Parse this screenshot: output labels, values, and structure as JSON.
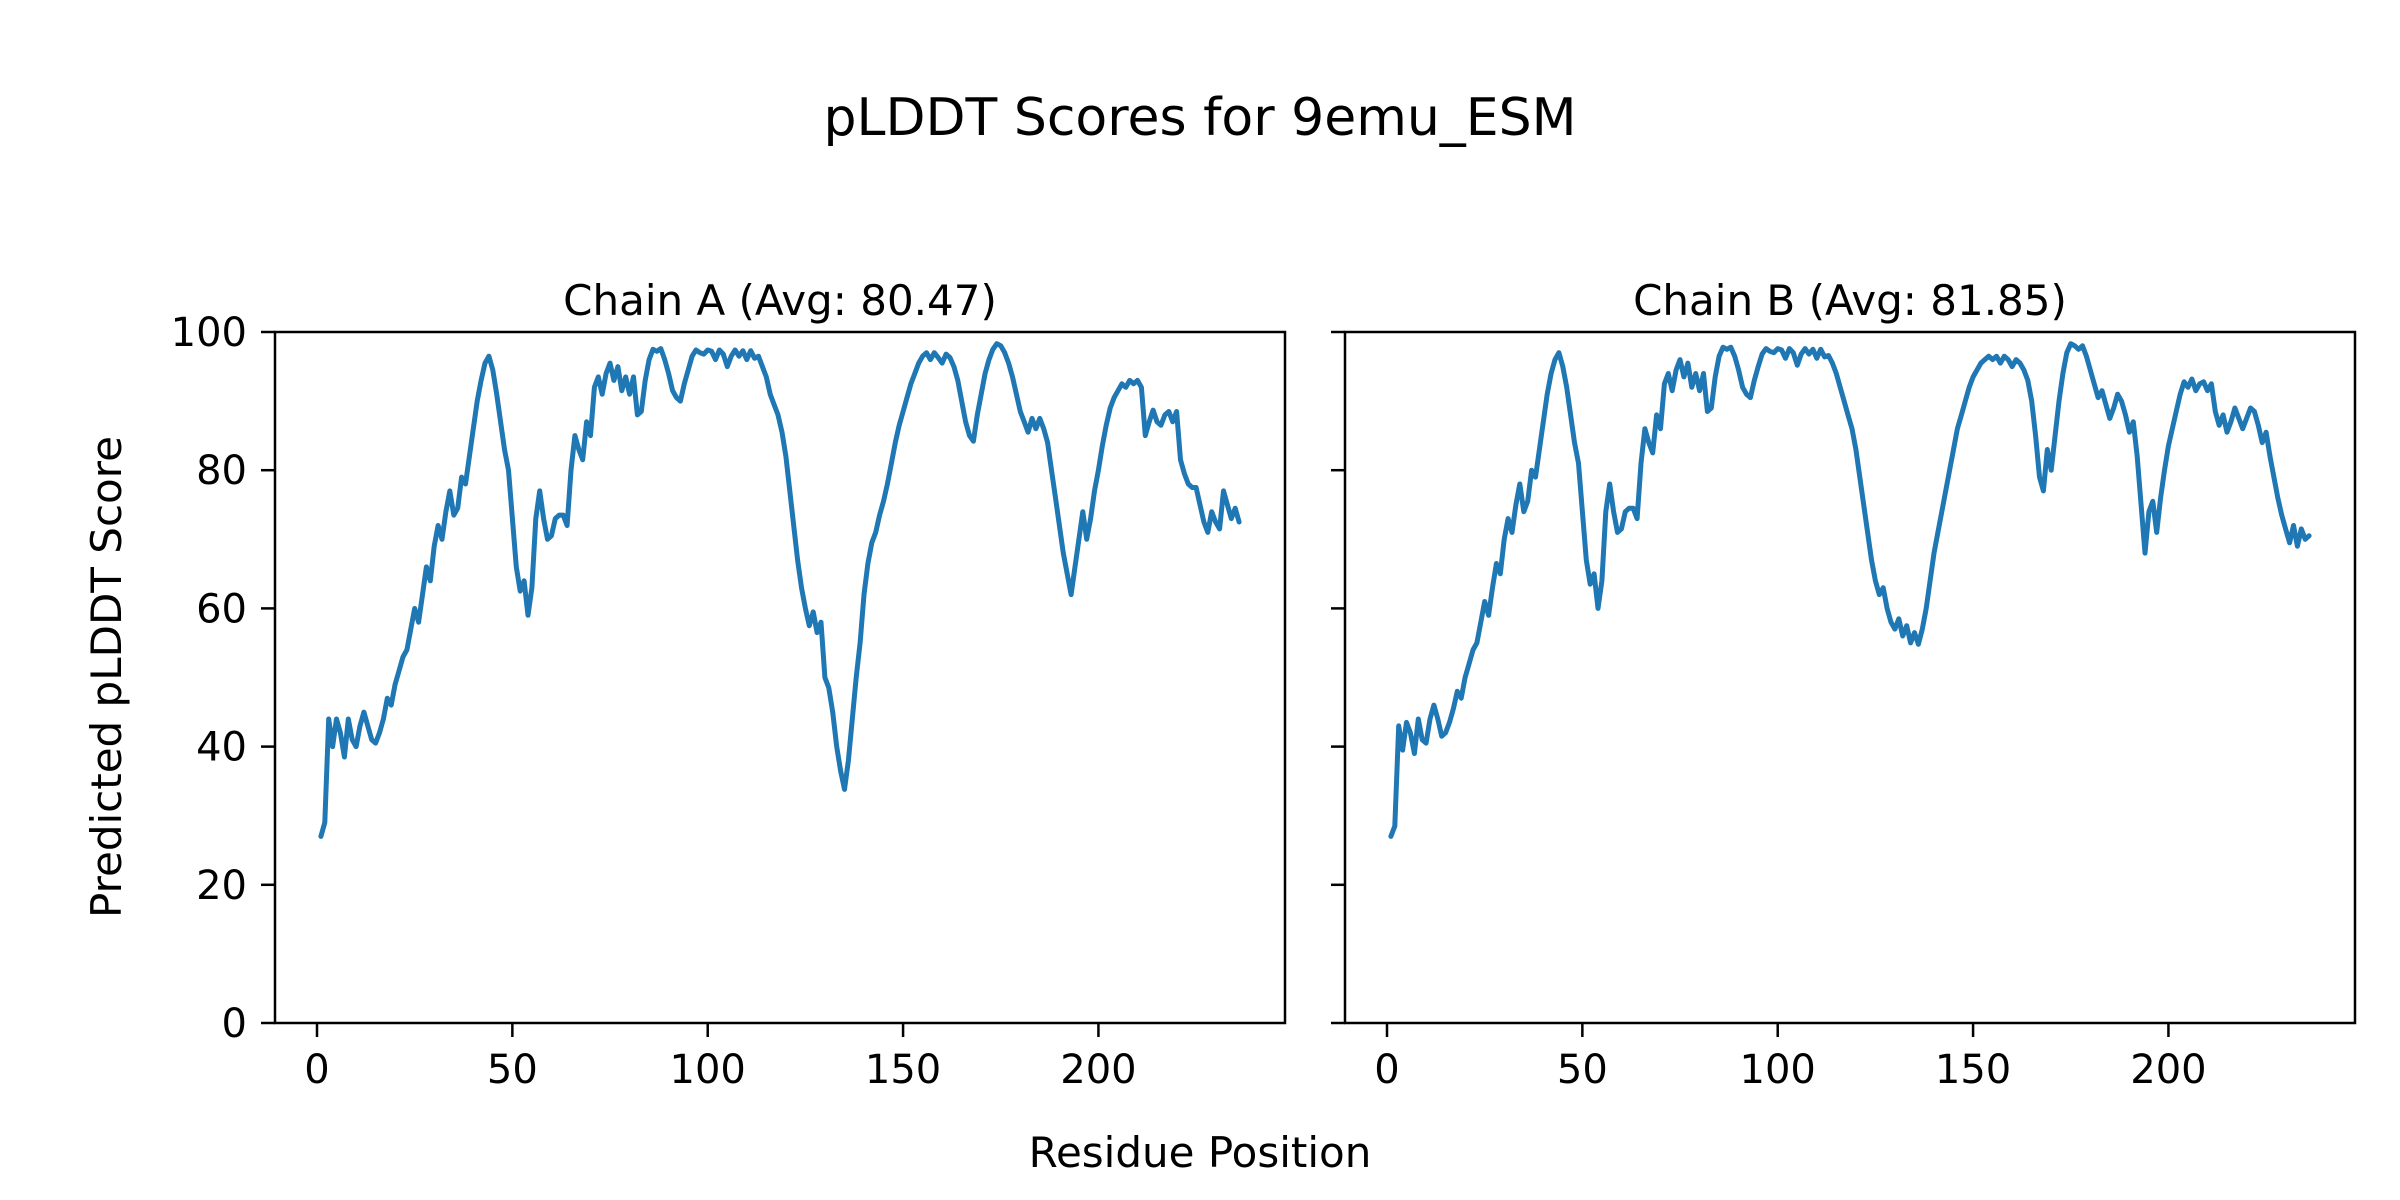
{
  "figure": {
    "title": "pLDDT Scores for 9emu_ESM",
    "xlabel": "Residue Position",
    "ylabel": "Predicted pLDDT Score",
    "background": "#ffffff",
    "text_color": "#000000",
    "spine_color": "#000000"
  },
  "chart_data": [
    {
      "type": "line",
      "title": "Chain A (Avg: 80.47)",
      "chain": "A",
      "avg": 80.47,
      "line_color": "#1f77b4",
      "x_ticks": [
        0,
        50,
        100,
        150,
        200
      ],
      "y_ticks": [
        0,
        20,
        40,
        60,
        80,
        100
      ],
      "xlim": [
        -10.75,
        247.75
      ],
      "ylim": [
        0,
        100
      ],
      "grid": false,
      "legend": "none",
      "x_start": 1,
      "values": [
        27,
        29,
        44,
        40,
        44,
        42,
        38.5,
        44,
        41,
        40,
        43,
        45,
        43,
        41,
        40.5,
        42,
        44,
        47,
        46,
        49,
        51,
        53,
        54,
        57,
        60,
        58,
        62,
        66,
        64,
        69,
        72,
        70,
        74,
        77,
        73.5,
        74.5,
        79,
        78,
        82,
        86,
        90,
        93,
        95.5,
        96.5,
        94.5,
        91,
        87,
        83,
        80,
        73,
        66,
        62.5,
        64,
        59,
        63,
        73,
        77,
        73,
        70,
        70.5,
        73,
        73.5,
        73.5,
        72,
        80,
        85,
        83,
        81.5,
        87,
        85,
        92,
        93.5,
        91,
        94,
        95.5,
        93,
        95,
        91.5,
        93.5,
        91,
        93.5,
        88,
        88.5,
        93,
        96,
        97.5,
        97.2,
        97.6,
        96,
        94,
        91.5,
        90.5,
        90,
        92.5,
        94.5,
        96.5,
        97.4,
        97,
        96.8,
        97.4,
        97.2,
        96,
        97.4,
        96.8,
        95,
        96.5,
        97.4,
        96.5,
        97.3,
        96,
        97.3,
        96.2,
        96.5,
        95,
        93.5,
        91,
        89.5,
        88,
        85.5,
        82,
        77,
        72,
        67,
        63,
        60,
        57.5,
        59.5,
        56.5,
        58,
        50,
        48.5,
        45,
        40,
        36.5,
        33.8,
        38,
        44,
        50,
        55,
        62,
        66.5,
        69.5,
        71,
        73.5,
        75.5,
        78,
        81,
        84,
        86.5,
        88.5,
        90.5,
        92.5,
        94,
        95.5,
        96.5,
        97,
        96,
        97,
        96.3,
        95.5,
        96.8,
        96.3,
        95,
        93,
        90,
        87,
        85,
        84.2,
        88,
        91,
        94,
        96,
        97.5,
        98.3,
        98,
        97,
        95.5,
        93.5,
        91,
        88.5,
        87,
        85.5,
        87.5,
        86,
        87.5,
        86,
        84,
        80,
        76,
        72,
        68,
        65,
        62,
        66,
        70,
        74,
        70,
        73,
        77,
        80,
        83.5,
        86.5,
        89,
        90.5,
        91.5,
        92.5,
        92,
        93,
        92.5,
        93,
        92,
        85,
        87,
        88.7,
        87,
        86.5,
        88,
        88.5,
        87,
        88.5,
        81.5,
        79.5,
        78,
        77.5,
        77.5,
        75,
        72.5,
        71,
        74,
        72.5,
        71.5,
        77,
        75,
        73,
        74.5,
        72.5
      ]
    },
    {
      "type": "line",
      "title": "Chain B (Avg: 81.85)",
      "chain": "B",
      "avg": 81.85,
      "line_color": "#1f77b4",
      "x_ticks": [
        0,
        50,
        100,
        150,
        200
      ],
      "y_ticks": [
        0,
        20,
        40,
        60,
        80,
        100
      ],
      "xlim": [
        -10.75,
        247.75
      ],
      "ylim": [
        0,
        100
      ],
      "grid": false,
      "legend": "none",
      "x_start": 1,
      "values": [
        27,
        28.5,
        43,
        39.5,
        43.5,
        42,
        39,
        44,
        41,
        40.5,
        44,
        46,
        44,
        41.5,
        42,
        43.5,
        45.5,
        48,
        47,
        50,
        52,
        54,
        55,
        58,
        61,
        59,
        63,
        66.5,
        65,
        70,
        73,
        71,
        75,
        78,
        74,
        75.5,
        80,
        79,
        83,
        87,
        91,
        94,
        96,
        97,
        95,
        92,
        88,
        84,
        81,
        74,
        67,
        63.5,
        65,
        60,
        64,
        74,
        78,
        74,
        71,
        71.5,
        74,
        74.5,
        74.5,
        73,
        81,
        86,
        84,
        82.5,
        88,
        86,
        92.5,
        94,
        91.5,
        94.5,
        96,
        93.5,
        95.5,
        92,
        94,
        91.5,
        94,
        88.5,
        89,
        93.5,
        96.5,
        97.8,
        97.5,
        97.8,
        96.5,
        94.5,
        92,
        91,
        90.5,
        93,
        95,
        96.8,
        97.6,
        97.2,
        97,
        97.6,
        97.4,
        96.2,
        97.6,
        97,
        95.2,
        96.8,
        97.6,
        96.8,
        97.5,
        96.2,
        97.5,
        96.4,
        96.6,
        95.5,
        94,
        92,
        90,
        88,
        86,
        83,
        79,
        75,
        71,
        67,
        64,
        62,
        63,
        60,
        58,
        57,
        58.5,
        56,
        57.5,
        55,
        56.5,
        54.8,
        57,
        60,
        64,
        68,
        71,
        74,
        77,
        80,
        83,
        86,
        88,
        90,
        92,
        93.5,
        94.5,
        95.5,
        96,
        96.5,
        96,
        96.5,
        95.5,
        96.5,
        96,
        95,
        96,
        95.5,
        94.5,
        93,
        90,
        85,
        79,
        77,
        83,
        80,
        85,
        90,
        94,
        97,
        98.3,
        98,
        97.5,
        98,
        96.5,
        94.5,
        92.5,
        90.5,
        91.5,
        89.5,
        87.5,
        89,
        91,
        90,
        88,
        85.5,
        87,
        82,
        75,
        68,
        74,
        75.5,
        71,
        76,
        80,
        83.5,
        86,
        88.5,
        91,
        92.8,
        92,
        93.2,
        91.5,
        92.5,
        92.8,
        91.5,
        92.5,
        88.5,
        86.5,
        88,
        85.5,
        87,
        89,
        87.5,
        86,
        87.5,
        89,
        88.5,
        86.5,
        84,
        85.5,
        82,
        79,
        76,
        73.5,
        71.5,
        69.5,
        72,
        69,
        71.5,
        70,
        70.5
      ]
    }
  ]
}
